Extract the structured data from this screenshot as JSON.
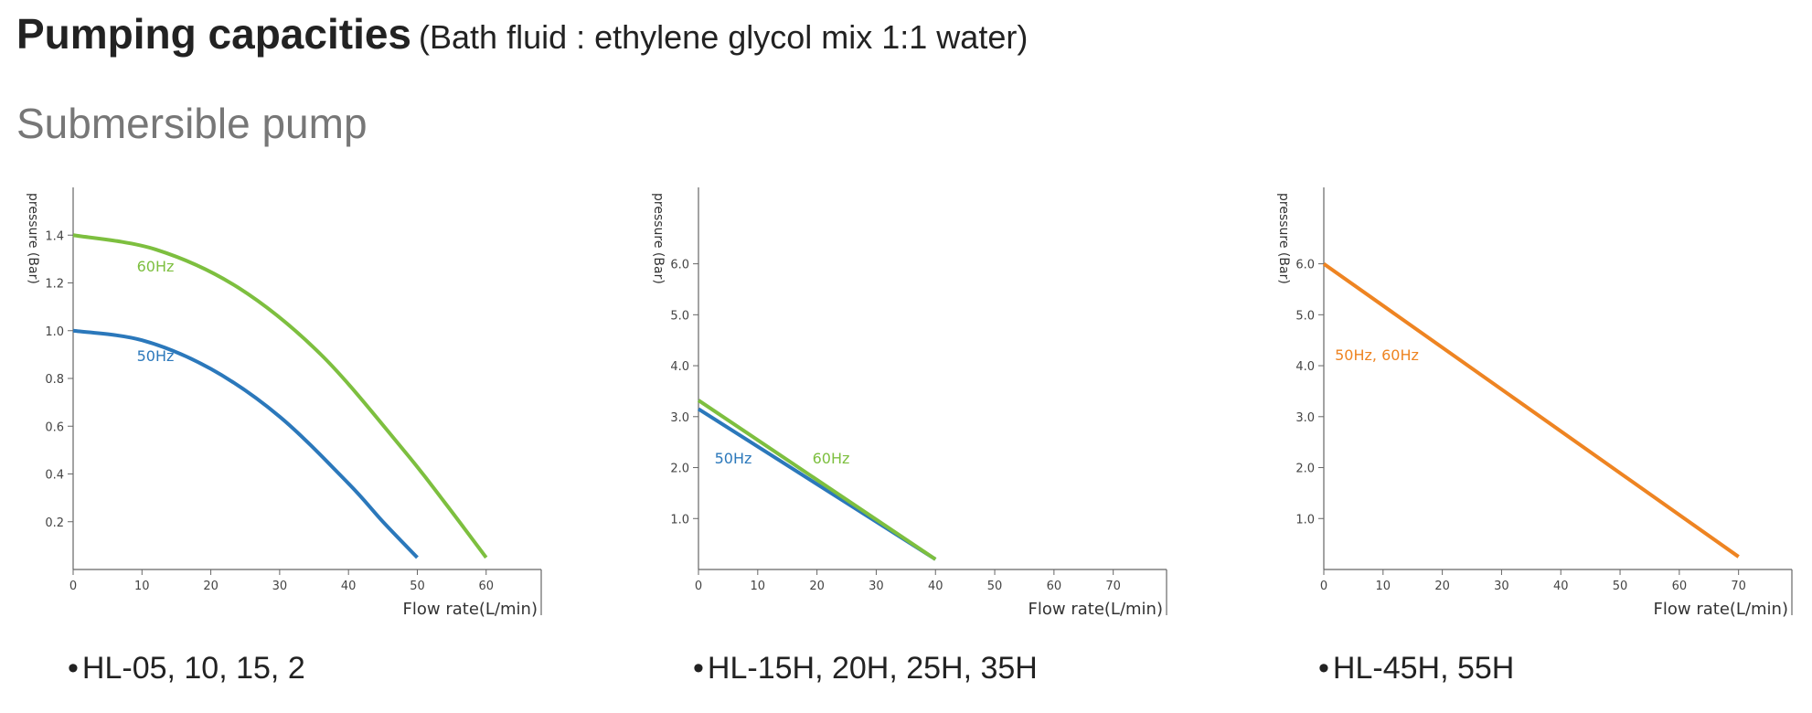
{
  "header": {
    "title": "Pumping capacities",
    "subtitle": "(Bath fluid : ethylene glycol mix 1:1 water)",
    "section": "Submersible pump"
  },
  "chart_data": [
    {
      "type": "line",
      "ylabel": "pressure (Bar)",
      "xlabel": "Flow rate(L/min)",
      "xlim": [
        0,
        68
      ],
      "ylim": [
        0,
        1.6
      ],
      "xticks": [
        0,
        10,
        20,
        30,
        40,
        50,
        60
      ],
      "yticks": [
        0.2,
        0.4,
        0.6,
        0.8,
        1.0,
        1.2,
        1.4
      ],
      "tick_decimals": 1,
      "series": [
        {
          "name": "50Hz",
          "color": "#2b78bb",
          "x": [
            0,
            10,
            20,
            30,
            40,
            45,
            50
          ],
          "y": [
            1.0,
            0.96,
            0.84,
            0.64,
            0.36,
            0.2,
            0.05
          ]
        },
        {
          "name": "60Hz",
          "color": "#7dbf3f",
          "x": [
            0,
            12,
            24,
            36,
            48,
            54,
            60
          ],
          "y": [
            1.4,
            1.34,
            1.18,
            0.9,
            0.5,
            0.28,
            0.05
          ]
        }
      ],
      "caption": "HL-05, 10, 15, 2"
    },
    {
      "type": "line",
      "ylabel": "pressure (Bar)",
      "xlabel": "Flow rate(L/min)",
      "xlim": [
        0,
        79
      ],
      "ylim": [
        0,
        7.5
      ],
      "xticks": [
        0,
        10,
        20,
        30,
        40,
        50,
        60,
        70
      ],
      "yticks": [
        1.0,
        2.0,
        3.0,
        4.0,
        5.0,
        6.0
      ],
      "tick_decimals": 1,
      "series": [
        {
          "name": "50Hz",
          "color": "#2b78bb",
          "x": [
            0,
            40
          ],
          "y": [
            3.15,
            0.2
          ]
        },
        {
          "name": "60Hz",
          "color": "#7dbf3f",
          "x": [
            0,
            40
          ],
          "y": [
            3.32,
            0.2
          ]
        }
      ],
      "caption": "HL-15H, 20H, 25H, 35H"
    },
    {
      "type": "line",
      "ylabel": "pressure (Bar)",
      "xlabel": "Flow rate(L/min)",
      "xlim": [
        0,
        79
      ],
      "ylim": [
        0,
        7.5
      ],
      "xticks": [
        0,
        10,
        20,
        30,
        40,
        50,
        60,
        70
      ],
      "yticks": [
        1.0,
        2.0,
        3.0,
        4.0,
        5.0,
        6.0
      ],
      "tick_decimals": 1,
      "series": [
        {
          "name": "50Hz, 60Hz",
          "color": "#ee8422",
          "x": [
            0,
            70
          ],
          "y": [
            6.0,
            0.25
          ]
        }
      ],
      "caption": "HL-45H, 55H"
    }
  ]
}
